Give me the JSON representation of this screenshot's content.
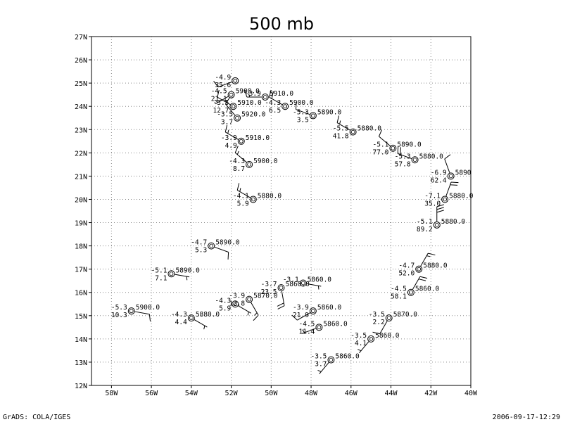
{
  "title": "500 mb",
  "footer": {
    "left": "GrADS: COLA/IGES",
    "right": "2006-09-17-12:29"
  },
  "axes": {
    "lon_range": [
      -59,
      -40
    ],
    "lat_range": [
      12,
      27
    ],
    "x_ticks": [
      {
        "value": -58,
        "label": "58W"
      },
      {
        "value": -56,
        "label": "56W"
      },
      {
        "value": -54,
        "label": "54W"
      },
      {
        "value": -52,
        "label": "52W"
      },
      {
        "value": -50,
        "label": "50W"
      },
      {
        "value": -48,
        "label": "48W"
      },
      {
        "value": -46,
        "label": "46W"
      },
      {
        "value": -44,
        "label": "44W"
      },
      {
        "value": -42,
        "label": "42W"
      },
      {
        "value": -40,
        "label": "40W"
      }
    ],
    "y_ticks": [
      {
        "value": 12,
        "label": "12N"
      },
      {
        "value": 13,
        "label": "13N"
      },
      {
        "value": 14,
        "label": "14N"
      },
      {
        "value": 15,
        "label": "15N"
      },
      {
        "value": 16,
        "label": "16N"
      },
      {
        "value": 17,
        "label": "17N"
      },
      {
        "value": 18,
        "label": "18N"
      },
      {
        "value": 19,
        "label": "19N"
      },
      {
        "value": 20,
        "label": "20N"
      },
      {
        "value": 21,
        "label": "21N"
      },
      {
        "value": 22,
        "label": "22N"
      },
      {
        "value": 23,
        "label": "23N"
      },
      {
        "value": 24,
        "label": "24N"
      },
      {
        "value": 25,
        "label": "25N"
      },
      {
        "value": 26,
        "label": "26N"
      },
      {
        "value": 27,
        "label": "27N"
      }
    ],
    "grid": "dotted"
  },
  "stations": [
    {
      "lon": -51.8,
      "lat": 25.1,
      "temp": "-4.9",
      "dew": "35.6",
      "height": "",
      "wdir": 250,
      "wspd": 10
    },
    {
      "lon": -52.0,
      "lat": 24.5,
      "temp": "-4.5",
      "dew": "21.1",
      "height": "5900.0",
      "wdir": 240,
      "wspd": 5
    },
    {
      "lon": -50.3,
      "lat": 24.4,
      "temp": "-3.9",
      "dew": "",
      "height": "5910.0",
      "wdir": 270,
      "wspd": 15
    },
    {
      "lon": -51.9,
      "lat": 24.0,
      "temp": "-3.5",
      "dew": "12.7",
      "height": "5910.0",
      "wdir": 300,
      "wspd": 10
    },
    {
      "lon": -49.3,
      "lat": 24.0,
      "temp": "-4.3",
      "dew": "6.5",
      "height": "5900.0",
      "wdir": 300,
      "wspd": 20
    },
    {
      "lon": -51.7,
      "lat": 23.5,
      "temp": "-3.5",
      "dew": "3.7",
      "height": "5920.0",
      "wdir": 320,
      "wspd": 10
    },
    {
      "lon": -47.9,
      "lat": 23.6,
      "temp": "-5.3",
      "dew": "3.5",
      "height": "5890.0",
      "wdir": 290,
      "wspd": 10
    },
    {
      "lon": -45.9,
      "lat": 22.9,
      "temp": "-5.5",
      "dew": "41.8",
      "height": "5880.0",
      "wdir": 300,
      "wspd": 15
    },
    {
      "lon": -51.5,
      "lat": 22.5,
      "temp": "-3.9",
      "dew": "4.9",
      "height": "5910.0",
      "wdir": 300,
      "wspd": 15
    },
    {
      "lon": -43.9,
      "lat": 22.2,
      "temp": "-5.1",
      "dew": "77.0",
      "height": "5890.0",
      "wdir": 310,
      "wspd": 10
    },
    {
      "lon": -42.8,
      "lat": 21.7,
      "temp": "-5.3",
      "dew": "57.8",
      "height": "5880.0",
      "wdir": 290,
      "wspd": 20
    },
    {
      "lon": -51.1,
      "lat": 21.5,
      "temp": "-4.3",
      "dew": "8.7",
      "height": "5900.0",
      "wdir": 310,
      "wspd": 15
    },
    {
      "lon": -41.0,
      "lat": 21.0,
      "temp": "-6.9",
      "dew": "62.4",
      "height": "5890",
      "wdir": 340,
      "wspd": 10
    },
    {
      "lon": -50.9,
      "lat": 20.0,
      "temp": "-4.1",
      "dew": "5.9",
      "height": "5880.0",
      "wdir": 300,
      "wspd": 15
    },
    {
      "lon": -41.3,
      "lat": 20.0,
      "temp": "-7.1",
      "dew": "35.0",
      "height": "5880.0",
      "wdir": 20,
      "wspd": 20
    },
    {
      "lon": -41.7,
      "lat": 18.9,
      "temp": "-5.1",
      "dew": "89.2",
      "height": "5880.0",
      "wdir": 0,
      "wspd": 30
    },
    {
      "lon": -53.0,
      "lat": 18.0,
      "temp": "-4.7",
      "dew": "5.3",
      "height": "5890.0",
      "wdir": 110,
      "wspd": 10
    },
    {
      "lon": -42.6,
      "lat": 17.0,
      "temp": "-4.7",
      "dew": "52.0",
      "height": "5880.0",
      "wdir": 30,
      "wspd": 15
    },
    {
      "lon": -55.0,
      "lat": 16.8,
      "temp": "-5.1",
      "dew": "7.1",
      "height": "5890.0",
      "wdir": 100,
      "wspd": 5
    },
    {
      "lon": -48.4,
      "lat": 16.4,
      "temp": "-3.1",
      "dew": "",
      "height": "5860.0",
      "wdir": 100,
      "wspd": 5
    },
    {
      "lon": -49.5,
      "lat": 16.2,
      "temp": "-3.7",
      "dew": "23.5",
      "height": "5860.0",
      "wdir": 170,
      "wspd": 20
    },
    {
      "lon": -43.0,
      "lat": 16.0,
      "temp": "-4.5",
      "dew": "58.1",
      "height": "5860.0",
      "wdir": 30,
      "wspd": 20
    },
    {
      "lon": -51.1,
      "lat": 15.7,
      "temp": "-3.9",
      "dew": "12.8",
      "height": "5870.0",
      "wdir": 150,
      "wspd": 15
    },
    {
      "lon": -51.8,
      "lat": 15.5,
      "temp": "-4.3",
      "dew": "5.9",
      "height": "",
      "wdir": 120,
      "wspd": 5
    },
    {
      "lon": -47.9,
      "lat": 15.2,
      "temp": "-3.9",
      "dew": "21.9",
      "height": "5860.0",
      "wdir": 240,
      "wspd": 10
    },
    {
      "lon": -57.0,
      "lat": 15.2,
      "temp": "-5.3",
      "dew": "10.3",
      "height": "5900.0",
      "wdir": 100,
      "wspd": 10
    },
    {
      "lon": -44.1,
      "lat": 14.9,
      "temp": "-3.5",
      "dew": "2.2",
      "height": "5870.0",
      "wdir": 210,
      "wspd": 10
    },
    {
      "lon": -54.0,
      "lat": 14.9,
      "temp": "-4.3",
      "dew": "4.4",
      "height": "5880.0",
      "wdir": 120,
      "wspd": 5
    },
    {
      "lon": -47.6,
      "lat": 14.5,
      "temp": "-4.5",
      "dew": "11.4",
      "height": "5860.0",
      "wdir": 250,
      "wspd": 5
    },
    {
      "lon": -45.0,
      "lat": 14.0,
      "temp": "-3.5",
      "dew": "4.1",
      "height": "5860.0",
      "wdir": 220,
      "wspd": 5
    },
    {
      "lon": -47.0,
      "lat": 13.1,
      "temp": "-3.5",
      "dew": "3.7",
      "height": "5860.0",
      "wdir": 220,
      "wspd": 5
    }
  ]
}
